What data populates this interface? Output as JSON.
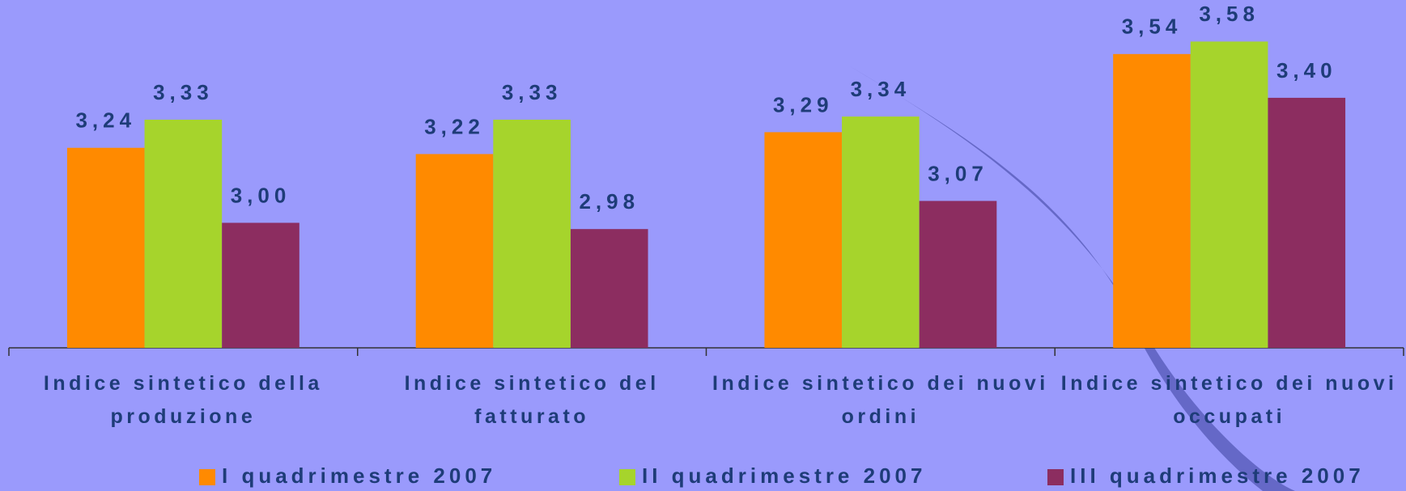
{
  "chart_data": {
    "type": "bar",
    "categories": [
      "Indice sintetico della produzione",
      "Indice sintetico del fatturato",
      "Indice sintetico dei nuovi ordini",
      "Indice sintetico dei nuovi occupati"
    ],
    "series": [
      {
        "name": "I quadrimestre 2007",
        "color": "#ff8a00",
        "values": [
          3.24,
          3.22,
          3.29,
          3.54
        ],
        "value_labels": [
          "3,24",
          "3,22",
          "3,29",
          "3,54"
        ]
      },
      {
        "name": "II quadrimestre 2007",
        "color": "#a6d42c",
        "values": [
          3.33,
          3.33,
          3.34,
          3.58
        ],
        "value_labels": [
          "3,33",
          "3,33",
          "3,34",
          "3,58"
        ]
      },
      {
        "name": "III quadrimestre 2007",
        "color": "#8c2d60",
        "values": [
          3.0,
          2.98,
          3.07,
          3.4
        ],
        "value_labels": [
          "3,00",
          "2,98",
          "3,07",
          "3,40"
        ]
      }
    ],
    "ylim": [
      2.6,
      3.7
    ],
    "legend": "bottom"
  }
}
